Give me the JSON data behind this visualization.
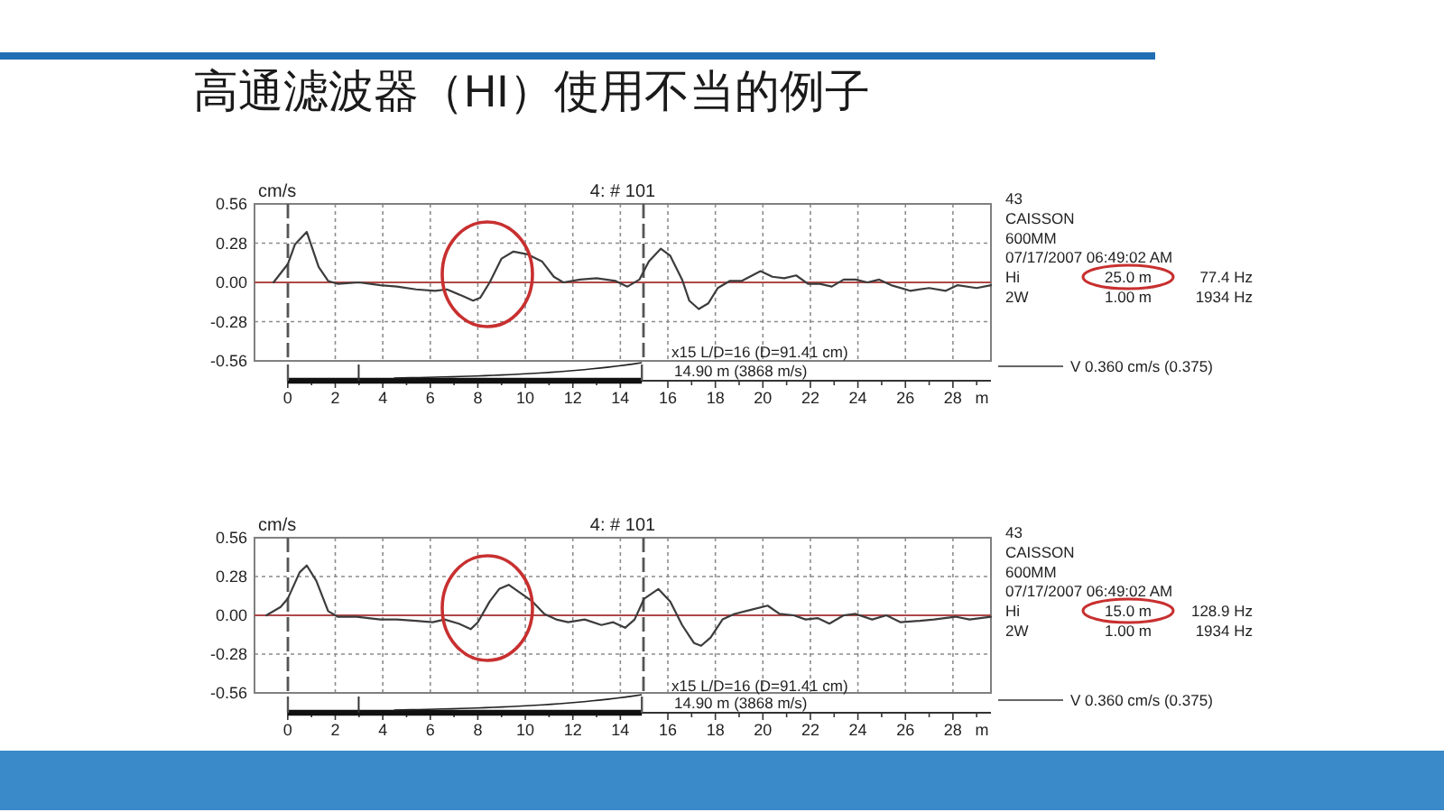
{
  "chart_data": [
    {
      "type": "line",
      "title": "高通滤波器（HI）使用不当的例子",
      "subtitle": "4: # 101",
      "ylabel": "cm/s",
      "xlabel": "m",
      "x": [
        -0.6,
        0,
        0.3,
        0.8,
        1.3,
        1.7,
        2.1,
        3.0,
        3.9,
        4.6,
        5.4,
        6.2,
        6.7,
        7.4,
        7.8,
        8.1,
        8.5,
        9.0,
        9.5,
        10.1,
        10.7,
        11.2,
        11.6,
        12.3,
        13.0,
        13.8,
        14.3,
        14.8,
        15.2,
        15.7,
        16.1,
        16.6,
        16.9,
        17.3,
        17.7,
        18.1,
        18.6,
        19.1,
        19.9,
        20.4,
        20.9,
        21.4,
        21.9,
        22.4,
        22.9,
        23.4,
        23.9,
        24.4,
        24.9,
        25.4,
        26.2,
        27.0,
        27.7,
        28.2,
        29.0,
        29.6
      ],
      "series": [
        {
          "color": "#3c3c3c",
          "values": [
            0,
            0.13,
            0.27,
            0.36,
            0.11,
            0.01,
            -0.01,
            0,
            -0.02,
            -0.03,
            -0.05,
            -0.06,
            -0.05,
            -0.1,
            -0.13,
            -0.11,
            0,
            0.17,
            0.22,
            0.2,
            0.15,
            0.04,
            0,
            0.02,
            0.03,
            0.01,
            -0.03,
            0.02,
            0.15,
            0.24,
            0.19,
            0.02,
            -0.13,
            -0.19,
            -0.15,
            -0.04,
            0.01,
            0.01,
            0.08,
            0.04,
            0.03,
            0.05,
            -0.01,
            -0.01,
            -0.03,
            0.02,
            0.02,
            0,
            0.02,
            -0.02,
            -0.06,
            -0.04,
            -0.06,
            -0.02,
            -0.04,
            -0.02
          ]
        }
      ],
      "xlim": [
        -1.4,
        29.6
      ],
      "xticks": [
        0,
        {
          "value": 1,
          "label": null
        },
        2,
        {
          "value": 3,
          "label": null
        },
        4,
        {
          "value": 5,
          "label": null
        },
        6,
        {
          "value": 7,
          "label": null
        },
        8,
        {
          "value": 9,
          "label": null
        },
        10,
        {
          "value": 11,
          "label": null
        },
        12,
        {
          "value": 13,
          "label": null
        },
        14,
        16,
        {
          "value": 17,
          "label": null
        },
        18,
        {
          "value": 19,
          "label": null
        },
        20,
        {
          "value": 21,
          "label": null
        },
        22,
        {
          "value": 23,
          "label": null
        },
        24,
        {
          "value": 25,
          "label": null
        },
        26,
        {
          "value": 27,
          "label": null
        },
        28,
        {
          "value": 29,
          "label": null
        }
      ],
      "ylim": [
        -0.56,
        0.56
      ],
      "yticks": [
        -0.56,
        -0.28,
        {
          "value": 0,
          "label": "0.00"
        },
        0.28,
        0.56
      ],
      "grid": true,
      "line_style": "solid",
      "ref_lines": [
        {
          "axis": "x",
          "value": 0,
          "color": "#555555",
          "line_style": "dashed"
        },
        {
          "axis": "x",
          "value": 14.9,
          "label": "14.90 m (3868 m/s)",
          "color": "#555555",
          "line_style": "dashed"
        },
        {
          "axis": "y",
          "value": 0,
          "color": "#b04848",
          "line_style": "solid"
        }
      ],
      "annotations": [
        "x15 L/D=16 (D=91.41 cm)",
        "43",
        "CAISSON",
        "600MM",
        "07/17/2007 06:49:02 AM",
        "Hi",
        "25.0 m",
        "77.4 Hz",
        "2W",
        "1.00 m",
        "1934 Hz",
        "V 0.360 cm/s (0.375)"
      ]
    },
    {
      "type": "line",
      "title": "4: # 101",
      "ylabel": "cm/s",
      "xlabel": "m",
      "x": [
        -0.9,
        -0.3,
        0,
        0.5,
        0.8,
        1.2,
        1.7,
        2.1,
        2.9,
        3.9,
        4.6,
        5.4,
        6.1,
        6.6,
        7.2,
        7.7,
        8.0,
        8.5,
        8.9,
        9.3,
        9.8,
        10.3,
        10.8,
        11.3,
        11.8,
        12.5,
        13.2,
        13.7,
        14.2,
        14.6,
        15.0,
        15.6,
        16.1,
        16.6,
        17.1,
        17.4,
        17.8,
        18.3,
        18.8,
        19.5,
        20.2,
        20.7,
        21.3,
        21.8,
        22.3,
        22.8,
        23.4,
        23.9,
        24.6,
        25.2,
        25.8,
        26.6,
        27.2,
        28.1,
        28.7,
        29.6
      ],
      "series": [
        {
          "color": "#3c3c3c",
          "values": [
            0,
            0.06,
            0.12,
            0.31,
            0.36,
            0.25,
            0.03,
            -0.01,
            -0.01,
            -0.03,
            -0.03,
            -0.04,
            -0.05,
            -0.03,
            -0.06,
            -0.1,
            -0.05,
            0.1,
            0.19,
            0.22,
            0.16,
            0.1,
            0.01,
            -0.03,
            -0.05,
            -0.03,
            -0.07,
            -0.05,
            -0.09,
            -0.03,
            0.12,
            0.19,
            0.1,
            -0.07,
            -0.2,
            -0.22,
            -0.16,
            -0.03,
            0.01,
            0.04,
            0.07,
            0.01,
            0,
            -0.03,
            -0.02,
            -0.06,
            0,
            0.01,
            -0.03,
            0,
            -0.05,
            -0.04,
            -0.03,
            -0.01,
            -0.03,
            -0.01
          ]
        }
      ],
      "xlim": [
        -1.4,
        29.6
      ],
      "xticks": [
        0,
        {
          "value": 1,
          "label": null
        },
        2,
        {
          "value": 3,
          "label": null
        },
        4,
        {
          "value": 5,
          "label": null
        },
        6,
        {
          "value": 7,
          "label": null
        },
        8,
        {
          "value": 9,
          "label": null
        },
        10,
        {
          "value": 11,
          "label": null
        },
        12,
        {
          "value": 13,
          "label": null
        },
        14,
        16,
        {
          "value": 17,
          "label": null
        },
        18,
        {
          "value": 19,
          "label": null
        },
        20,
        {
          "value": 21,
          "label": null
        },
        22,
        {
          "value": 23,
          "label": null
        },
        24,
        {
          "value": 25,
          "label": null
        },
        26,
        {
          "value": 27,
          "label": null
        },
        28,
        {
          "value": 29,
          "label": null
        }
      ],
      "ylim": [
        -0.56,
        0.56
      ],
      "yticks": [
        -0.56,
        -0.28,
        {
          "value": 0,
          "label": "0.00"
        },
        0.28,
        0.56
      ],
      "grid": true,
      "line_style": "solid",
      "ref_lines": [
        {
          "axis": "x",
          "value": 0,
          "color": "#555555",
          "line_style": "dashed"
        },
        {
          "axis": "x",
          "value": 14.9,
          "label": "14.90 m (3868 m/s)",
          "color": "#555555",
          "line_style": "dashed"
        },
        {
          "axis": "y",
          "value": 0,
          "color": "#b04848",
          "line_style": "solid"
        }
      ],
      "annotations": [
        "x15 L/D=16 (D=91.41 cm)",
        "43",
        "CAISSON",
        "600MM",
        "07/17/2007 06:49:02 AM",
        "Hi",
        "15.0 m",
        "128.9 Hz",
        "2W",
        "1.00 m",
        "1934 Hz",
        "V 0.360 cm/s (0.375)"
      ]
    }
  ]
}
